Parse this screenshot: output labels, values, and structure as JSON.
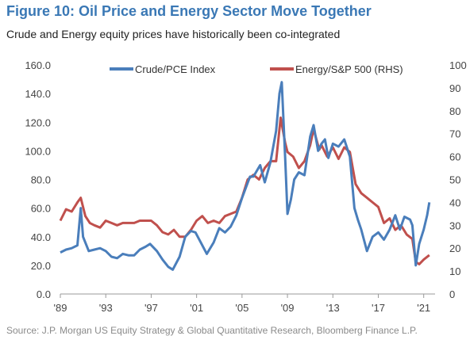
{
  "title": "Figure 10: Oil Price and Energy Sector Move Together",
  "subtitle": "Crude and Energy equity prices have historically been co-integrated",
  "source": "Source: J.P. Morgan US Equity Strategy & Global Quantitative Research, Bloomberg Finance L.P.",
  "colors": {
    "title": "#3A78B5",
    "crude": "#4A7EBB",
    "energy": "#C0504D"
  },
  "chart_data": {
    "type": "line",
    "x_ticks": [
      "'89",
      "'93",
      "'97",
      "'01",
      "'05",
      "'09",
      "'13",
      "'17",
      "'21"
    ],
    "x_tick_years": [
      1989,
      1993,
      1997,
      2001,
      2005,
      2009,
      2013,
      2017,
      2021
    ],
    "xlim": [
      1989,
      2022
    ],
    "y_left_ticks": [
      "0.0",
      "20.0",
      "40.0",
      "60.0",
      "80.0",
      "100.0",
      "120.0",
      "140.0",
      "160.0"
    ],
    "y_right_ticks": [
      "0",
      "10",
      "20",
      "30",
      "40",
      "50",
      "60",
      "70",
      "80",
      "90",
      "100"
    ],
    "ylim_left": [
      0,
      160
    ],
    "ylim_right": [
      0,
      100
    ],
    "legend_position": "top",
    "series": [
      {
        "name": "Crude/PCE Index",
        "axis": "left",
        "x": [
          1989.0,
          1989.5,
          1990.0,
          1990.5,
          1990.8,
          1991.0,
          1991.5,
          1992.0,
          1992.5,
          1993.0,
          1993.5,
          1994.0,
          1994.5,
          1995.0,
          1995.5,
          1996.0,
          1996.5,
          1996.9,
          1997.5,
          1998.0,
          1998.5,
          1998.9,
          1999.5,
          2000.0,
          2000.5,
          2000.9,
          2001.5,
          2001.9,
          2002.5,
          2003.0,
          2003.5,
          2004.0,
          2004.5,
          2005.0,
          2005.7,
          2006.0,
          2006.6,
          2007.0,
          2007.5,
          2008.0,
          2008.3,
          2008.5,
          2008.8,
          2009.0,
          2009.3,
          2009.6,
          2010.0,
          2010.5,
          2011.0,
          2011.3,
          2011.7,
          2012.0,
          2012.3,
          2012.6,
          2013.0,
          2013.5,
          2014.0,
          2014.5,
          2014.9,
          2015.2,
          2015.5,
          2016.0,
          2016.5,
          2017.0,
          2017.5,
          2018.0,
          2018.5,
          2018.9,
          2019.3,
          2019.8,
          2020.0,
          2020.3,
          2020.6,
          2021.0,
          2021.3,
          2021.5
        ],
        "values": [
          29,
          31,
          32,
          34,
          60,
          40,
          30,
          31,
          32,
          30,
          26,
          25,
          28,
          27,
          27,
          31,
          33,
          35,
          30,
          24,
          19,
          17,
          26,
          40,
          44,
          43,
          34,
          28,
          36,
          46,
          43,
          47,
          55,
          67,
          82,
          82,
          90,
          78,
          92,
          114,
          140,
          148,
          95,
          56,
          66,
          80,
          85,
          83,
          110,
          118,
          100,
          105,
          108,
          95,
          105,
          103,
          108,
          96,
          60,
          52,
          45,
          30,
          40,
          43,
          38,
          45,
          55,
          45,
          54,
          52,
          48,
          20,
          35,
          45,
          55,
          64
        ]
      },
      {
        "name": "Energy/S&P 500 (RHS)",
        "axis": "right",
        "x": [
          1989.0,
          1989.5,
          1990.0,
          1990.5,
          1990.8,
          1991.2,
          1991.6,
          1992.0,
          1992.5,
          1993.0,
          1993.5,
          1994.0,
          1994.5,
          1995.0,
          1995.5,
          1996.0,
          1996.5,
          1997.0,
          1997.5,
          1998.0,
          1998.5,
          1999.0,
          1999.5,
          2000.0,
          2000.5,
          2001.0,
          2001.5,
          2002.0,
          2002.5,
          2003.0,
          2003.5,
          2004.0,
          2004.5,
          2005.0,
          2005.5,
          2006.0,
          2006.5,
          2007.0,
          2007.5,
          2008.0,
          2008.4,
          2008.8,
          2009.0,
          2009.5,
          2010.0,
          2010.5,
          2011.0,
          2011.3,
          2011.8,
          2012.0,
          2012.5,
          2013.0,
          2013.5,
          2014.0,
          2014.5,
          2015.0,
          2015.5,
          2016.0,
          2016.5,
          2017.0,
          2017.5,
          2018.0,
          2018.5,
          2019.0,
          2019.5,
          2020.0,
          2020.3,
          2020.6,
          2021.0,
          2021.5
        ],
        "values": [
          32,
          37,
          36,
          40,
          42,
          34,
          31,
          30,
          29,
          32,
          31,
          30,
          31,
          31,
          31,
          32,
          32,
          32,
          30,
          27,
          26,
          28,
          25,
          25,
          28,
          32,
          34,
          31,
          32,
          31,
          34,
          35,
          36,
          42,
          50,
          52,
          50,
          55,
          58,
          58,
          77,
          66,
          62,
          60,
          55,
          58,
          65,
          72,
          63,
          65,
          60,
          64,
          59,
          64,
          62,
          48,
          44,
          42,
          40,
          38,
          31,
          33,
          28,
          30,
          26,
          24,
          14,
          13,
          15,
          17
        ]
      }
    ]
  }
}
